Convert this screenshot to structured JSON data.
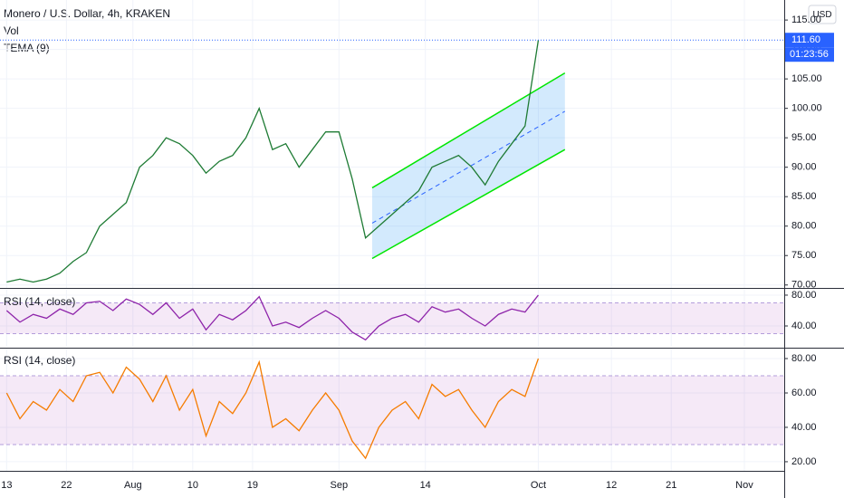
{
  "chart_data": [
    {
      "type": "line",
      "title": "Monero / U.S. Dollar, 4h, KRAKEN",
      "legend": [
        "Vol",
        "TEMA (9)"
      ],
      "currency": "USD",
      "x": [
        "07-13",
        "07-15",
        "07-17",
        "07-19",
        "07-21",
        "07-23",
        "07-25",
        "07-27",
        "07-29",
        "07-31",
        "08-02",
        "08-04",
        "08-06",
        "08-08",
        "08-10",
        "08-12",
        "08-14",
        "08-16",
        "08-18",
        "08-20",
        "08-22",
        "08-24",
        "08-26",
        "08-28",
        "08-30",
        "09-01",
        "09-03",
        "09-05",
        "09-07",
        "09-09",
        "09-11",
        "09-13",
        "09-15",
        "09-17",
        "09-19",
        "09-21",
        "09-23",
        "09-25",
        "09-27",
        "09-29",
        "10-01"
      ],
      "series": [
        {
          "name": "TEMA (9)",
          "color": "#1e7b34",
          "values": [
            70.5,
            71,
            70.5,
            71,
            72,
            74,
            75.5,
            80,
            82,
            84,
            90,
            92,
            95,
            94,
            92,
            89,
            91,
            92,
            95,
            100,
            93,
            94,
            90,
            93,
            96,
            96,
            88,
            78,
            80,
            82,
            84,
            86,
            90,
            91,
            92,
            90,
            87,
            91,
            94,
            97,
            111.6
          ]
        }
      ],
      "last_price": {
        "value": 111.6,
        "label": "111.60",
        "countdown": "01:23:56"
      },
      "channel": {
        "start": "09-06",
        "end": "10-05",
        "upper": [
          86.5,
          106
        ],
        "lower": [
          74.5,
          93
        ]
      },
      "xlim": [
        "07-12",
        "11-07"
      ],
      "ylim": [
        69.5,
        118.4
      ],
      "yticks": [
        {
          "value": 70,
          "label": "70.00"
        },
        {
          "value": 75,
          "label": "75.00"
        },
        {
          "value": 80,
          "label": "80.00"
        },
        {
          "value": 85,
          "label": "85.00"
        },
        {
          "value": 90,
          "label": "90.00"
        },
        {
          "value": 95,
          "label": "95.00"
        },
        {
          "value": 100,
          "label": "100.00"
        },
        {
          "value": 105,
          "label": "105.00"
        },
        {
          "value": 110,
          "label": "110.00"
        },
        {
          "value": 115,
          "label": "115.00"
        }
      ],
      "grid": true
    },
    {
      "type": "line",
      "title": "RSI (14, close)",
      "x": [
        "07-13",
        "07-15",
        "07-17",
        "07-19",
        "07-21",
        "07-23",
        "07-25",
        "07-27",
        "07-29",
        "07-31",
        "08-02",
        "08-04",
        "08-06",
        "08-08",
        "08-10",
        "08-12",
        "08-14",
        "08-16",
        "08-18",
        "08-20",
        "08-22",
        "08-24",
        "08-26",
        "08-28",
        "08-30",
        "09-01",
        "09-03",
        "09-05",
        "09-07",
        "09-09",
        "09-11",
        "09-13",
        "09-15",
        "09-17",
        "09-19",
        "09-21",
        "09-23",
        "09-25",
        "09-27",
        "09-29",
        "10-01"
      ],
      "series": [
        {
          "name": "RSI",
          "color": "#8e24aa",
          "values": [
            60,
            45,
            55,
            50,
            62,
            55,
            70,
            72,
            60,
            75,
            68,
            55,
            70,
            50,
            62,
            35,
            55,
            48,
            60,
            78,
            40,
            45,
            38,
            50,
            60,
            50,
            32,
            22,
            40,
            50,
            55,
            45,
            65,
            58,
            62,
            50,
            40,
            55,
            62,
            58,
            80
          ]
        }
      ],
      "band": [
        30,
        70
      ],
      "xlim": [
        "07-12",
        "11-07"
      ],
      "ylim": [
        13,
        87
      ],
      "yticks": [
        {
          "value": 80,
          "label": "80.00"
        },
        {
          "value": 40,
          "label": "40.00"
        }
      ]
    },
    {
      "type": "line",
      "title": "RSI (14, close)",
      "x": [
        "07-13",
        "07-15",
        "07-17",
        "07-19",
        "07-21",
        "07-23",
        "07-25",
        "07-27",
        "07-29",
        "07-31",
        "08-02",
        "08-04",
        "08-06",
        "08-08",
        "08-10",
        "08-12",
        "08-14",
        "08-16",
        "08-18",
        "08-20",
        "08-22",
        "08-24",
        "08-26",
        "08-28",
        "08-30",
        "09-01",
        "09-03",
        "09-05",
        "09-07",
        "09-09",
        "09-11",
        "09-13",
        "09-15",
        "09-17",
        "09-19",
        "09-21",
        "09-23",
        "09-25",
        "09-27",
        "09-29",
        "10-01"
      ],
      "series": [
        {
          "name": "RSI",
          "color": "#f57c00",
          "values": [
            60,
            45,
            55,
            50,
            62,
            55,
            70,
            72,
            60,
            75,
            68,
            55,
            70,
            50,
            62,
            35,
            55,
            48,
            60,
            78,
            40,
            45,
            38,
            50,
            60,
            50,
            32,
            22,
            40,
            50,
            55,
            45,
            65,
            58,
            62,
            50,
            40,
            55,
            62,
            58,
            80
          ]
        }
      ],
      "band": [
        30,
        70
      ],
      "xlim": [
        "07-12",
        "11-07"
      ],
      "ylim": [
        14.7,
        85.8
      ],
      "yticks": [
        {
          "value": 80,
          "label": "80.00"
        },
        {
          "value": 60,
          "label": "60.00"
        },
        {
          "value": 40,
          "label": "40.00"
        },
        {
          "value": 20,
          "label": "20.00"
        }
      ],
      "xticks": [
        {
          "value": "07-13",
          "label": "13"
        },
        {
          "value": "07-22",
          "label": "22"
        },
        {
          "value": "08-01",
          "label": "Aug"
        },
        {
          "value": "08-10",
          "label": "10"
        },
        {
          "value": "08-19",
          "label": "19"
        },
        {
          "value": "09-01",
          "label": "Sep"
        },
        {
          "value": "09-14",
          "label": "14"
        },
        {
          "value": "10-01",
          "label": "Oct"
        },
        {
          "value": "10-12",
          "label": "12"
        },
        {
          "value": "10-21",
          "label": "21"
        },
        {
          "value": "11-01",
          "label": "Nov"
        }
      ]
    }
  ]
}
